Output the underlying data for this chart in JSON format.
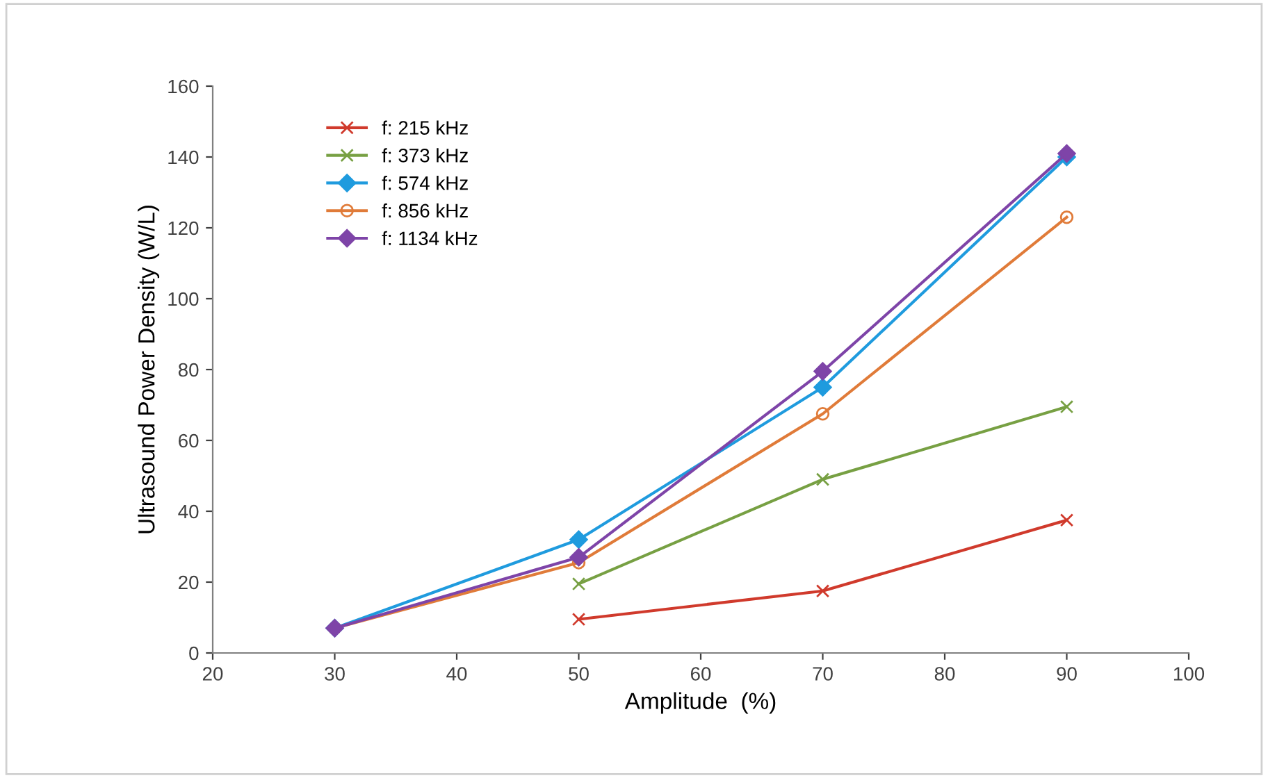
{
  "chart_data": {
    "type": "line",
    "xlabel": "Amplitude  (%)",
    "ylabel": "Ultrasound Power Density (W/L)",
    "x": [
      30,
      50,
      70,
      90
    ],
    "series": [
      {
        "name": "f: 215 kHz",
        "color": "#d03a2c",
        "marker": "cross",
        "values": [
          null,
          9.5,
          17.5,
          37.5
        ]
      },
      {
        "name": "f: 373 kHz",
        "color": "#77a043",
        "marker": "cross",
        "values": [
          null,
          19.5,
          49,
          69.5
        ]
      },
      {
        "name": "f: 574 kHz",
        "color": "#1f9bde",
        "marker": "diamond",
        "values": [
          7,
          32,
          75,
          140
        ]
      },
      {
        "name": "f: 856 kHz",
        "color": "#e07b39",
        "marker": "circle",
        "values": [
          7,
          25.5,
          67.5,
          123
        ]
      },
      {
        "name": "f: 1134 kHz",
        "color": "#7e44a8",
        "marker": "diamond",
        "values": [
          7,
          27,
          79.5,
          141
        ]
      }
    ],
    "xlim": [
      20,
      100
    ],
    "xticks": [
      20,
      30,
      40,
      50,
      60,
      70,
      80,
      90,
      100
    ],
    "ylim": [
      0,
      160
    ],
    "yticks": [
      0,
      20,
      40,
      60,
      80,
      100,
      120,
      140,
      160
    ],
    "grid": false,
    "legend": "top left",
    "line_style": "solid"
  }
}
